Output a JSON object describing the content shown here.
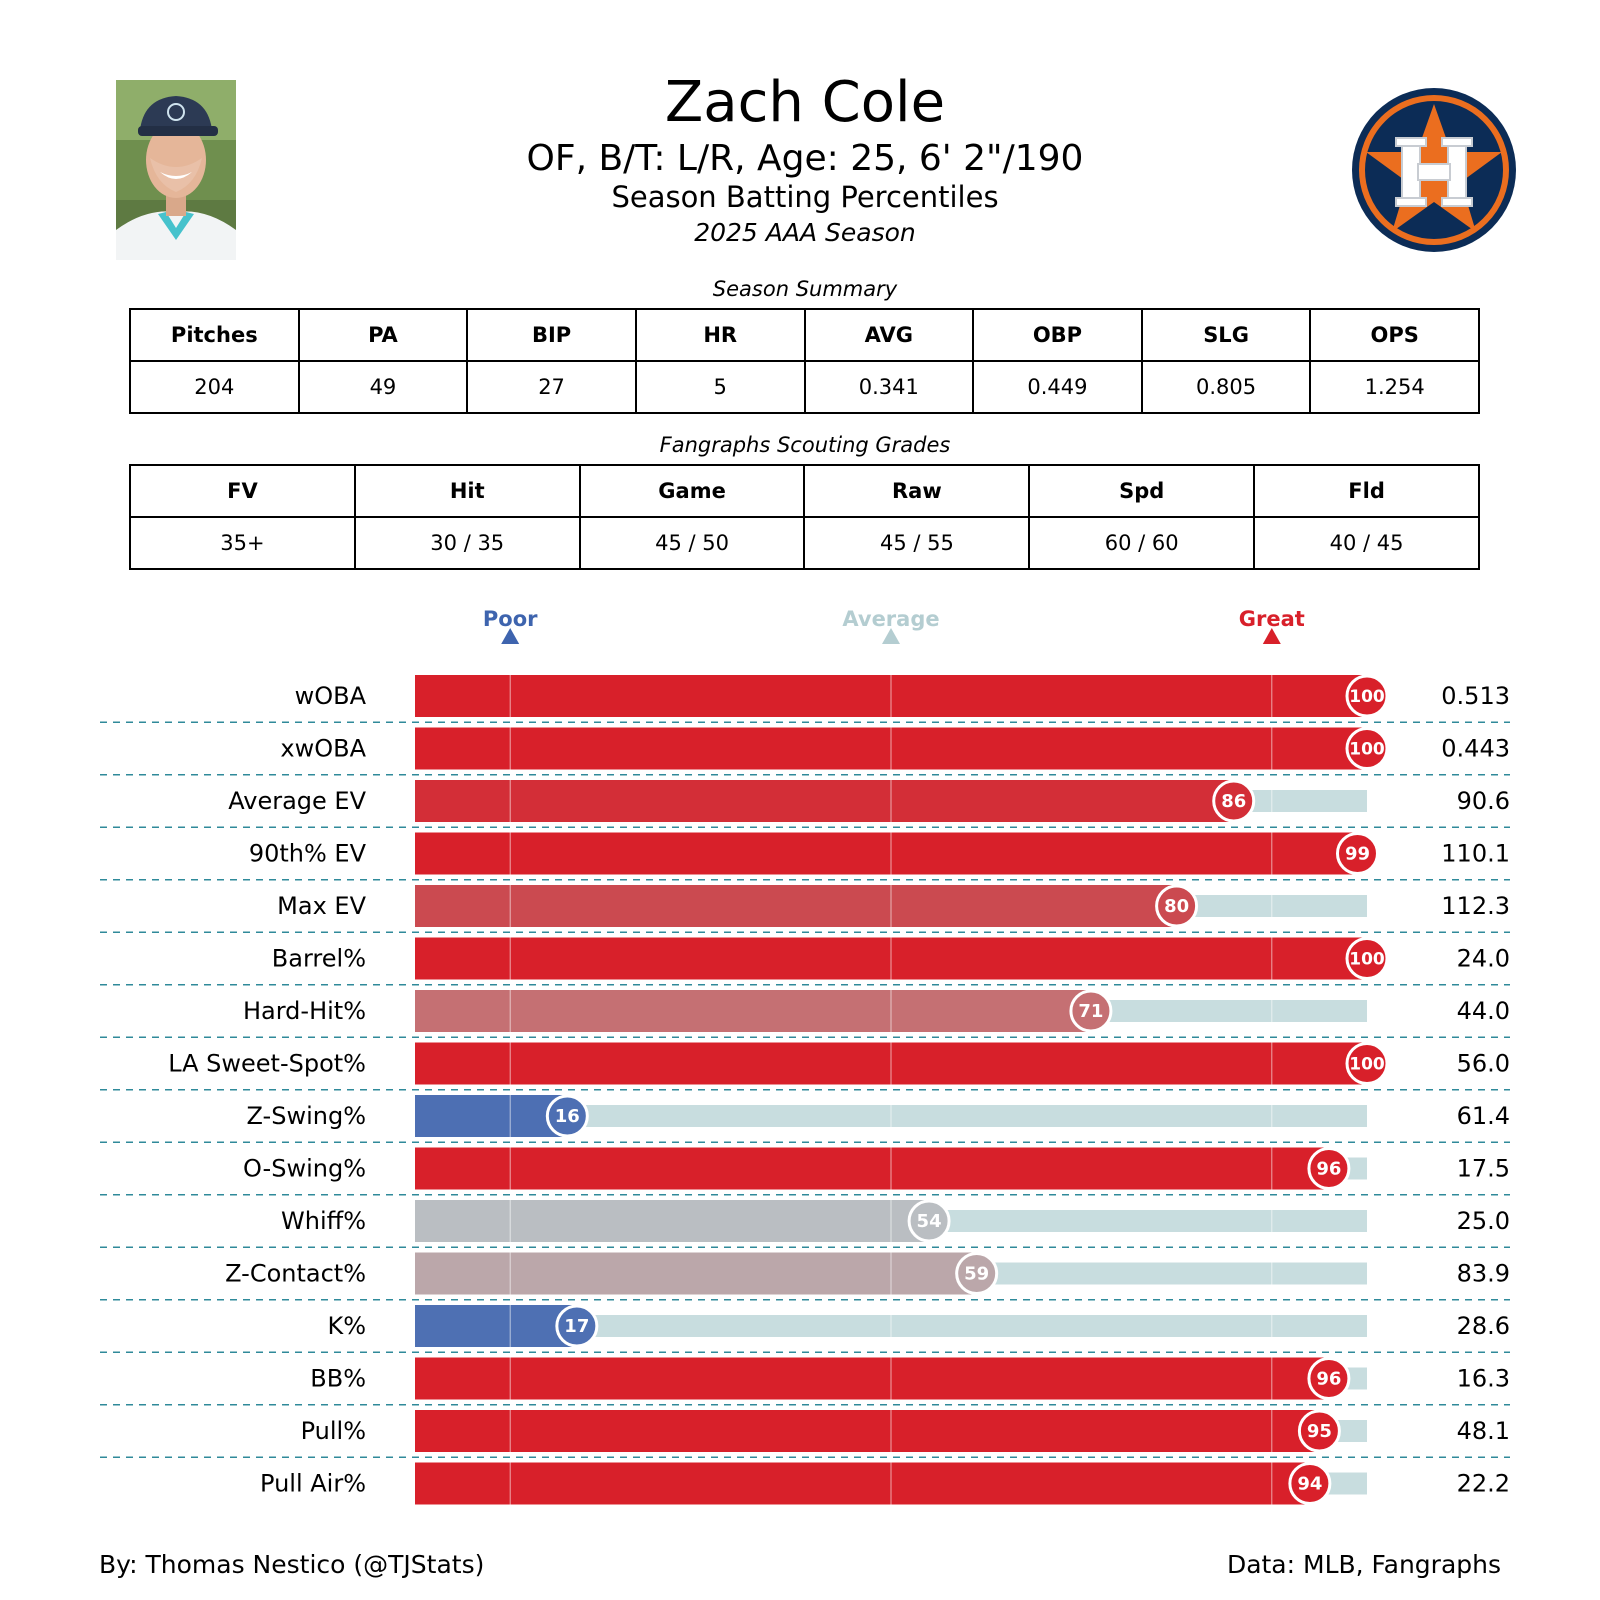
{
  "header": {
    "player_name": "Zach Cole",
    "player_bio": "OF, B/T: L/R, Age: 25, 6' 2\"/190",
    "title": "Season Batting Percentiles",
    "season": "2025 AAA Season"
  },
  "logo": {
    "team_letter": "H",
    "colors": {
      "navy": "#0C2C56",
      "orange": "#EB6E1F"
    }
  },
  "summary": {
    "caption": "Season Summary",
    "headers": [
      "Pitches",
      "PA",
      "BIP",
      "HR",
      "AVG",
      "OBP",
      "SLG",
      "OPS"
    ],
    "values": [
      "204",
      "49",
      "27",
      "5",
      "0.341",
      "0.449",
      "0.805",
      "1.254"
    ]
  },
  "grades": {
    "caption": "Fangraphs Scouting Grades",
    "headers": [
      "FV",
      "Hit",
      "Game",
      "Raw",
      "Spd",
      "Fld"
    ],
    "values": [
      "35+",
      "30 / 35",
      "45 / 50",
      "45 / 55",
      "60 / 60",
      "40 / 45"
    ]
  },
  "chart_data": {
    "type": "bar",
    "orientation": "horizontal",
    "xlim": [
      0,
      100
    ],
    "reference_markers": [
      {
        "label": "Poor",
        "value": 10,
        "color": "#3E64AE"
      },
      {
        "label": "Average",
        "value": 50,
        "color": "#B4CDD1"
      },
      {
        "label": "Great",
        "value": 90,
        "color": "#D8202A"
      }
    ],
    "categories": [
      "wOBA",
      "xwOBA",
      "Average EV",
      "90th% EV",
      "Max EV",
      "Barrel%",
      "Hard-Hit%",
      "LA Sweet-Spot%",
      "Z-Swing%",
      "O-Swing%",
      "Whiff%",
      "Z-Contact%",
      "K%",
      "BB%",
      "Pull%",
      "Pull Air%"
    ],
    "percentiles": [
      100,
      100,
      86,
      99,
      80,
      100,
      71,
      100,
      16,
      96,
      54,
      59,
      17,
      96,
      95,
      94
    ],
    "stat_values": [
      "0.513",
      "0.443",
      "90.6",
      "110.1",
      "112.3",
      "24.0",
      "44.0",
      "56.0",
      "61.4",
      "17.5",
      "25.0",
      "83.9",
      "28.6",
      "16.3",
      "48.1",
      "22.2"
    ],
    "bar_colors": [
      "#D8202A",
      "#D8202A",
      "#D32E37",
      "#D8202A",
      "#CB4A50",
      "#D8202A",
      "#C57073",
      "#D8202A",
      "#4D6FB3",
      "#D8202A",
      "#BABEC2",
      "#BBA7AA",
      "#4E70B3",
      "#D8202A",
      "#D8202A",
      "#D8202A"
    ],
    "track_color": "#C8DDDF",
    "grid": true
  },
  "footer": {
    "credit": "By: Thomas Nestico (@TJStats)",
    "source": "Data: MLB, Fangraphs"
  }
}
